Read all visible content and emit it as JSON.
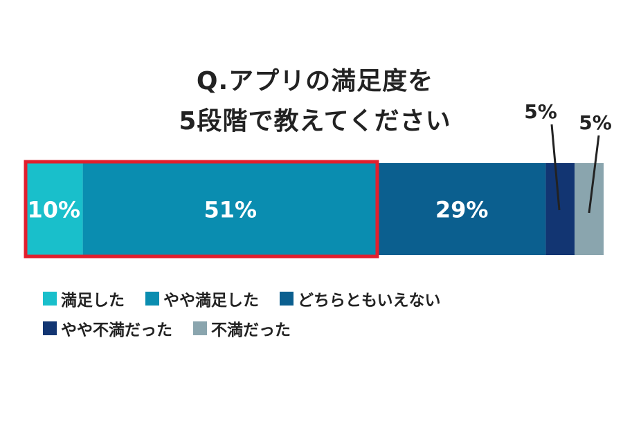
{
  "chart_data": {
    "type": "bar",
    "orientation": "horizontal-stacked-100",
    "title_lines": [
      "Q.アプリの満足度を",
      "5段階で教えてください"
    ],
    "categories": [
      "満足した",
      "やや満足した",
      "どちらともいえない",
      "やや不満だった",
      "不満だった"
    ],
    "values": [
      10,
      51,
      29,
      5,
      5
    ],
    "value_labels": [
      "10%",
      "51%",
      "29%",
      "5%",
      "5%"
    ],
    "colors": [
      "#19bfcb",
      "#0a8db0",
      "#0b5f8f",
      "#123572",
      "#8aa5ae"
    ],
    "label_color_inside": "#ffffff",
    "highlighted_categories": [
      "満足した",
      "やや満足した"
    ],
    "highlight_color": "#e11f2d",
    "legend_position": "bottom",
    "grid": false
  }
}
